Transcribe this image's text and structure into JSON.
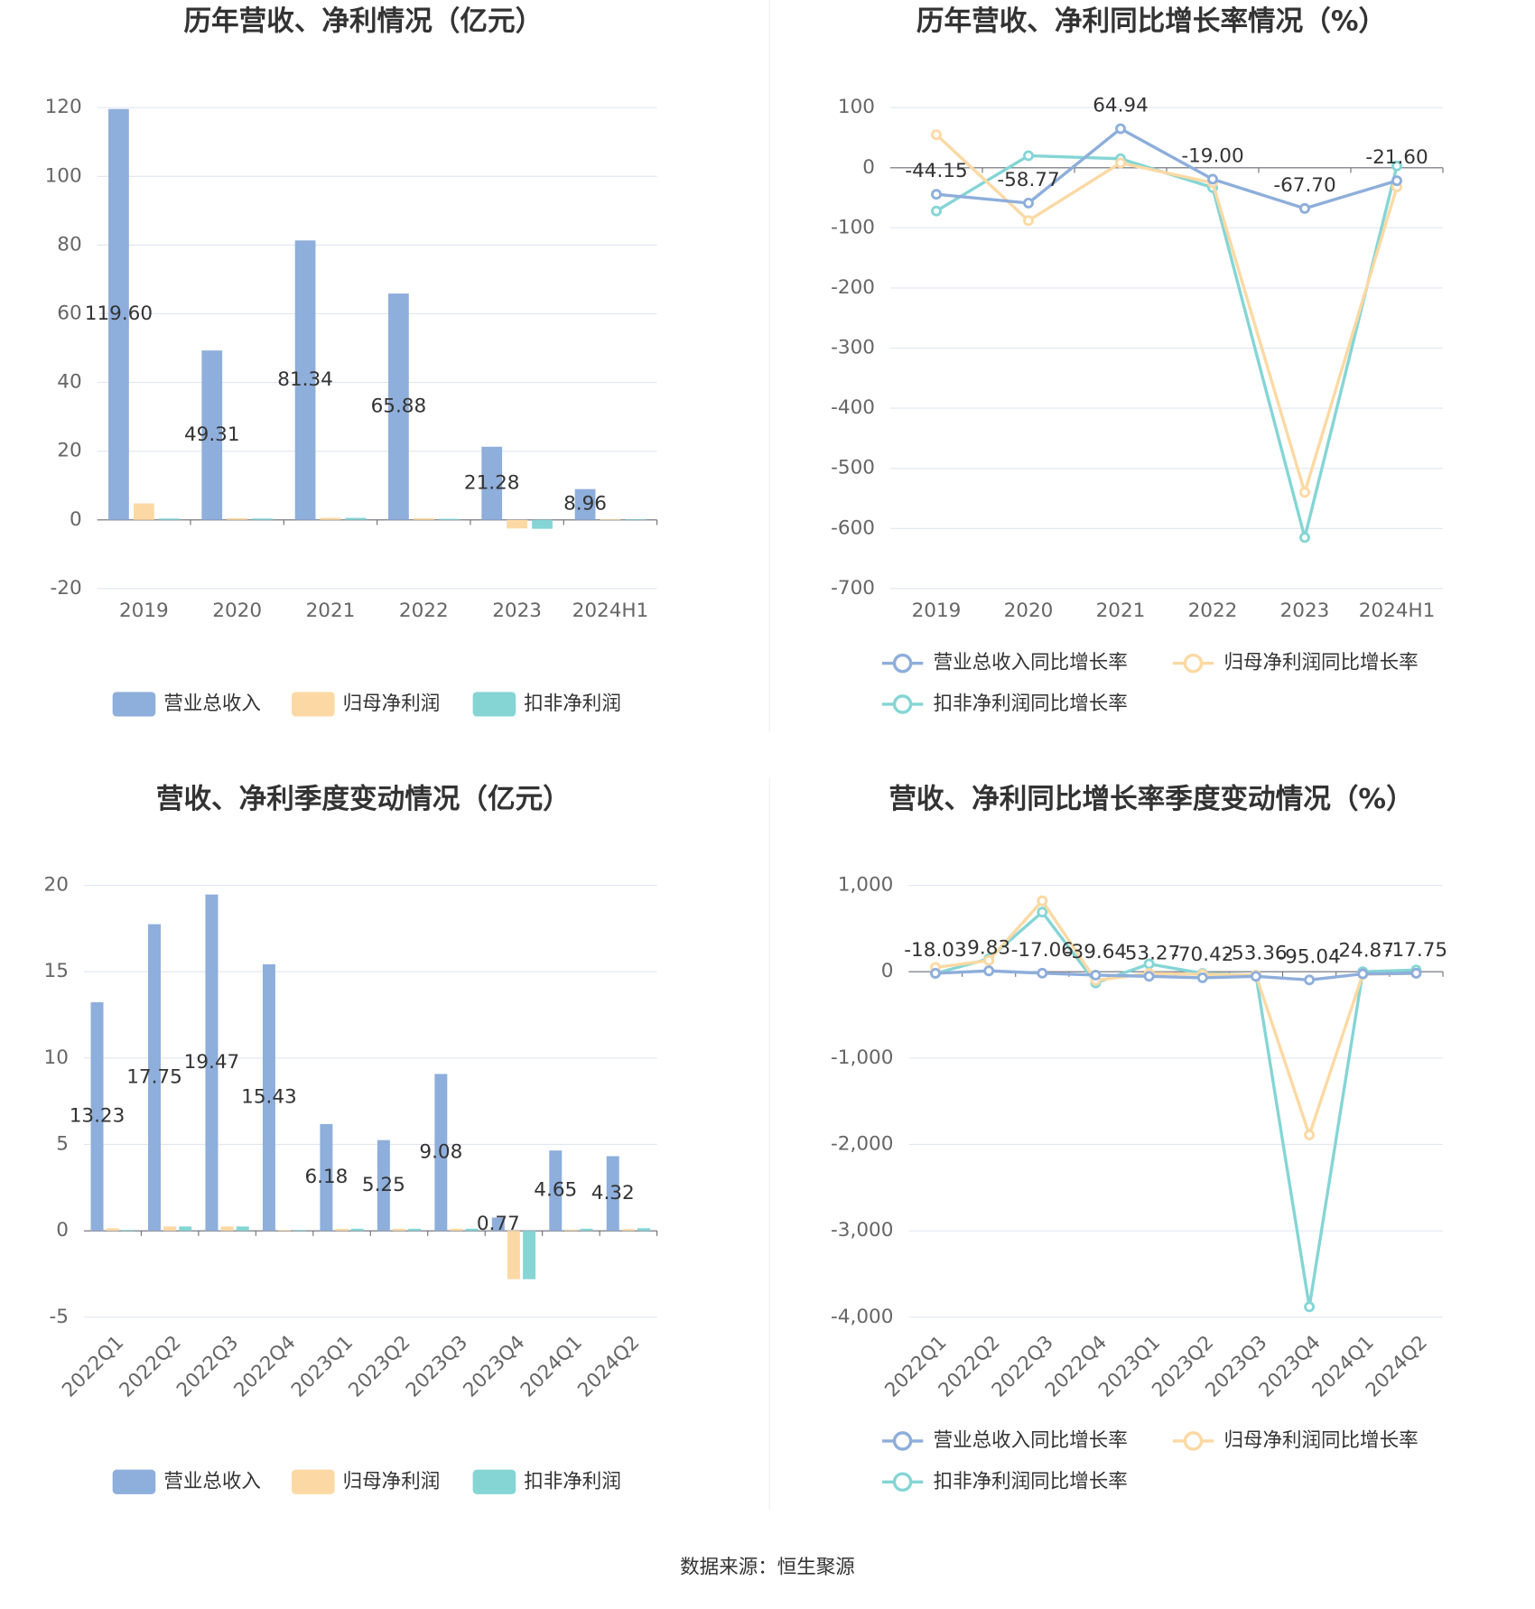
{
  "chart_data": [
    {
      "type": "bar",
      "title": "历年营收、净利情况（亿元）",
      "categories": [
        "2019",
        "2020",
        "2021",
        "2022",
        "2023",
        "2024H1"
      ],
      "series": [
        {
          "name": "营业总收入",
          "color": "#8eaedb",
          "values": [
            119.6,
            49.31,
            81.34,
            65.88,
            21.28,
            8.96
          ],
          "value_labels": [
            "119.60",
            "49.31",
            "81.34",
            "65.88",
            "21.28",
            "8.96"
          ]
        },
        {
          "name": "归母净利润",
          "color": "#fcd9a4",
          "values": [
            4.8,
            0.5,
            0.6,
            0.5,
            -2.5,
            0.2
          ]
        },
        {
          "name": "扣非净利润",
          "color": "#85d5d5",
          "values": [
            0.4,
            0.4,
            0.6,
            0.3,
            -2.6,
            0.2
          ]
        }
      ],
      "ylim": [
        -20,
        120
      ],
      "yticks": [
        -20,
        0,
        20,
        40,
        60,
        80,
        100,
        120
      ],
      "grid": true
    },
    {
      "type": "line",
      "title": "历年营收、净利同比增长率情况（%）",
      "categories": [
        "2019",
        "2020",
        "2021",
        "2022",
        "2023",
        "2024H1"
      ],
      "series": [
        {
          "name": "营业总收入同比增长率",
          "color": "#8eaedb",
          "values": [
            -44.15,
            -58.77,
            64.94,
            -19.0,
            -67.7,
            -21.6
          ],
          "value_labels": [
            "-44.15",
            "-58.77",
            "64.94",
            "-19.00",
            "-67.70",
            "-21.60"
          ]
        },
        {
          "name": "归母净利润同比增长率",
          "color": "#fcd9a4",
          "values": [
            55,
            -88,
            8,
            -25,
            -540,
            -32
          ]
        },
        {
          "name": "扣非净利润同比增长率",
          "color": "#85d5d5",
          "values": [
            -72,
            20,
            15,
            -33,
            -615,
            3
          ]
        }
      ],
      "ylim": [
        -700,
        100
      ],
      "yticks": [
        -700,
        -600,
        -500,
        -400,
        -300,
        -200,
        -100,
        0,
        100
      ],
      "grid": true
    },
    {
      "type": "bar",
      "title": "营收、净利季度变动情况（亿元）",
      "categories": [
        "2022Q1",
        "2022Q2",
        "2022Q3",
        "2022Q4",
        "2023Q1",
        "2023Q2",
        "2023Q3",
        "2023Q4",
        "2024Q1",
        "2024Q2"
      ],
      "series": [
        {
          "name": "营业总收入",
          "color": "#8eaedb",
          "values": [
            13.23,
            17.75,
            19.47,
            15.43,
            6.18,
            5.25,
            9.08,
            0.77,
            4.65,
            4.32
          ]
        },
        {
          "name": "归母净利润",
          "color": "#fcd9a4",
          "values": [
            0.15,
            0.25,
            0.25,
            0.05,
            0.12,
            0.12,
            0.12,
            -2.8,
            0.07,
            0.1
          ]
        },
        {
          "name": "扣非净利润",
          "color": "#85d5d5",
          "values": [
            0.05,
            0.25,
            0.25,
            0.05,
            0.12,
            0.12,
            0.12,
            -2.8,
            0.12,
            0.15
          ]
        }
      ],
      "ylim": [
        -5,
        20
      ],
      "yticks": [
        -5,
        0,
        5,
        10,
        15,
        20
      ],
      "grid": true
    },
    {
      "type": "line",
      "title": "营收、净利同比增长率季度变动情况（%）",
      "categories": [
        "2022Q1",
        "2022Q2",
        "2022Q3",
        "2022Q4",
        "2023Q1",
        "2023Q2",
        "2023Q3",
        "2023Q4",
        "2024Q1",
        "2024Q2"
      ],
      "series": [
        {
          "name": "营业总收入同比增长率",
          "color": "#8eaedb",
          "values": [
            -18.03,
            9.83,
            -17.06,
            -39.64,
            -53.27,
            -70.42,
            -53.36,
            -95.04,
            -24.87,
            -17.75
          ]
        },
        {
          "name": "归母净利润同比增长率",
          "color": "#fcd9a4",
          "values": [
            50,
            130,
            820,
            -100,
            -20,
            -30,
            -40,
            -1890,
            -30,
            -20
          ]
        },
        {
          "name": "扣非净利润同比增长率",
          "color": "#85d5d5",
          "values": [
            -20,
            150,
            690,
            -130,
            90,
            -20,
            -40,
            -3880,
            0,
            20
          ]
        }
      ],
      "ylim": [
        -4000,
        1000
      ],
      "yticks": [
        {
          "value": -4000,
          "label": "-4,000"
        },
        {
          "value": -3000,
          "label": "-3,000"
        },
        {
          "value": -2000,
          "label": "-2,000"
        },
        {
          "value": -1000,
          "label": "-1,000"
        },
        0,
        {
          "value": 1000,
          "label": "1,000"
        }
      ],
      "grid": true
    }
  ],
  "source": "数据来源：恒生聚源"
}
